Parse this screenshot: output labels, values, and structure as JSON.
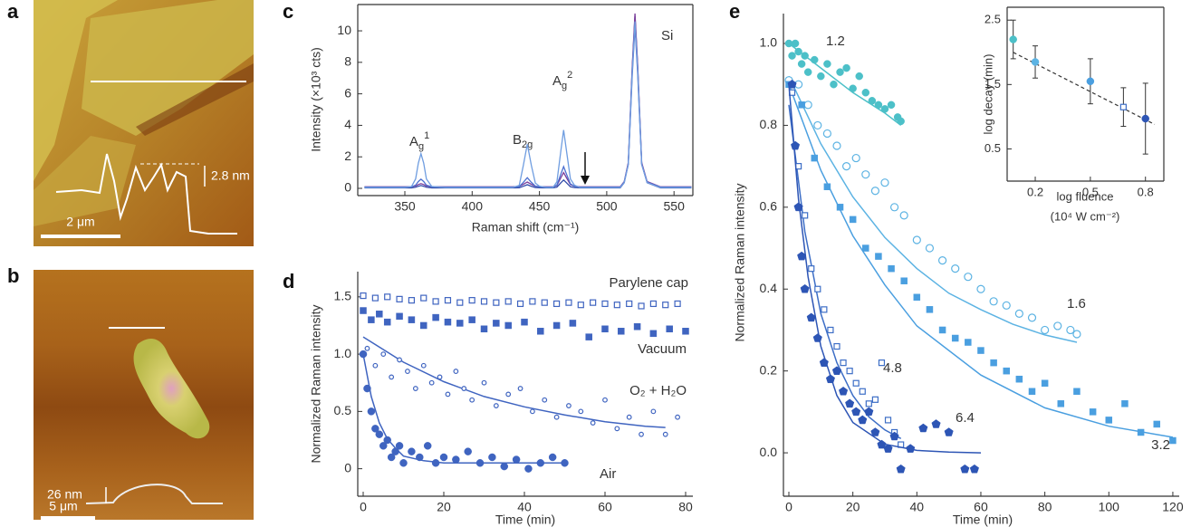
{
  "panels": {
    "a": {
      "label": "a",
      "height": "2.8 nm",
      "scale_bar": "2 μm"
    },
    "b": {
      "label": "b",
      "height": "26 nm",
      "scale_bar": "5 μm"
    }
  },
  "chart_data": [
    {
      "type": "line",
      "panel": "c",
      "xlabel": "Raman shift (cm⁻¹)",
      "ylabel": "Intensity (×10³ cts)",
      "frame": true,
      "xlim": [
        315,
        564
      ],
      "ylim": [
        -0.46,
        11.67
      ],
      "xticks": [
        350,
        400,
        450,
        500,
        550
      ],
      "yticks": [
        0,
        2,
        4,
        6,
        8,
        10
      ],
      "peak_labels": [
        {
          "base": "A",
          "sub": "g",
          "sup": "1"
        },
        {
          "base": "B",
          "sub": "2g"
        },
        {
          "base": "A",
          "sub": "g",
          "sup": "2"
        },
        {
          "base": "Si"
        }
      ],
      "x": [
        320,
        330,
        340,
        350,
        355,
        358,
        360,
        362,
        364,
        366,
        370,
        380,
        400,
        420,
        430,
        435,
        438,
        441,
        444,
        447,
        450,
        455,
        460,
        463,
        466,
        468,
        470,
        473,
        476,
        480,
        490,
        500,
        510,
        513,
        516,
        519,
        521,
        523,
        526,
        530,
        540,
        550,
        563
      ],
      "series": [
        {
          "color": "#2f4aa8",
          "values": [
            0.03,
            0.03,
            0.03,
            0.03,
            0.03,
            0.07,
            0.13,
            0.18,
            0.13,
            0.07,
            0.03,
            0.03,
            0.03,
            0.03,
            0.03,
            0.04,
            0.13,
            0.23,
            0.13,
            0.05,
            0.04,
            0.03,
            0.03,
            0.08,
            0.36,
            0.53,
            0.36,
            0.1,
            0.05,
            0.03,
            0.03,
            0.03,
            0.03,
            0.36,
            1.56,
            7.66,
            10.93,
            7.66,
            1.56,
            0.36,
            0.03,
            0.03,
            0.03
          ]
        },
        {
          "color": "#7a3d9a",
          "values": [
            0.1,
            0.1,
            0.1,
            0.1,
            0.11,
            0.15,
            0.24,
            0.3,
            0.24,
            0.15,
            0.11,
            0.1,
            0.1,
            0.1,
            0.1,
            0.12,
            0.25,
            0.4,
            0.25,
            0.13,
            0.1,
            0.1,
            0.1,
            0.19,
            0.69,
            1.0,
            0.69,
            0.24,
            0.14,
            0.1,
            0.1,
            0.1,
            0.1,
            0.43,
            1.64,
            7.8,
            11.1,
            7.8,
            1.64,
            0.43,
            0.1,
            0.1,
            0.1
          ]
        },
        {
          "color": "#4b6fcf",
          "values": [
            0.08,
            0.08,
            0.08,
            0.08,
            0.1,
            0.2,
            0.43,
            0.58,
            0.43,
            0.2,
            0.1,
            0.08,
            0.08,
            0.08,
            0.08,
            0.11,
            0.38,
            0.68,
            0.38,
            0.14,
            0.1,
            0.08,
            0.08,
            0.21,
            0.93,
            1.38,
            0.93,
            0.28,
            0.13,
            0.08,
            0.08,
            0.08,
            0.08,
            0.39,
            1.51,
            7.22,
            10.28,
            7.22,
            1.51,
            0.39,
            0.08,
            0.08,
            0.08
          ]
        },
        {
          "color": "#6f9de0",
          "values": [
            0.05,
            0.05,
            0.05,
            0.05,
            0.12,
            0.6,
            1.6,
            2.2,
            1.6,
            0.6,
            0.12,
            0.05,
            0.05,
            0.05,
            0.05,
            0.19,
            1.45,
            2.8,
            1.45,
            0.33,
            0.13,
            0.05,
            0.05,
            0.42,
            2.45,
            3.7,
            2.45,
            0.6,
            0.2,
            0.05,
            0.05,
            0.05,
            0.05,
            0.37,
            1.53,
            7.45,
            10.6,
            7.45,
            1.53,
            0.37,
            0.05,
            0.05,
            0.05
          ]
        }
      ]
    },
    {
      "type": "scatter",
      "panel": "d",
      "xlabel": "Time (min)",
      "ylabel": "Normalized Raman intensity",
      "frame": false,
      "xlim": [
        -1.35,
        81.8
      ],
      "ylim": [
        -0.24,
        1.72
      ],
      "xticks": [
        0,
        20,
        40,
        60,
        80
      ],
      "yticks": [
        0,
        0.5,
        {
          "value": 1,
          "label": "1.0"
        },
        1.5
      ],
      "series": [
        {
          "name": "Parylene cap",
          "color": "#3f64c0",
          "marker": "open-square",
          "x": [
            0,
            3,
            6,
            9,
            12,
            15,
            18,
            21,
            24,
            27,
            30,
            33,
            36,
            39,
            42,
            45,
            48,
            51,
            54,
            57,
            60,
            63,
            66,
            69,
            72,
            75,
            78
          ],
          "values": [
            1.51,
            1.49,
            1.5,
            1.48,
            1.47,
            1.49,
            1.46,
            1.47,
            1.45,
            1.47,
            1.46,
            1.45,
            1.46,
            1.44,
            1.46,
            1.45,
            1.44,
            1.45,
            1.43,
            1.45,
            1.44,
            1.43,
            1.44,
            1.42,
            1.44,
            1.43,
            1.44
          ]
        },
        {
          "name": "Vacuum",
          "color": "#3f64c0",
          "marker": "square",
          "x": [
            0,
            2,
            4,
            6,
            9,
            12,
            15,
            18,
            21,
            24,
            27,
            30,
            33,
            36,
            40,
            44,
            48,
            52,
            56,
            60,
            64,
            68,
            72,
            76,
            80
          ],
          "values": [
            1.38,
            1.3,
            1.35,
            1.28,
            1.33,
            1.3,
            1.25,
            1.32,
            1.28,
            1.27,
            1.3,
            1.22,
            1.27,
            1.25,
            1.28,
            1.2,
            1.25,
            1.27,
            1.15,
            1.22,
            1.2,
            1.24,
            1.18,
            1.22,
            1.2
          ]
        },
        {
          "name": "O₂ + H₂O",
          "color": "#3f64c0",
          "marker": "small-open-circle",
          "x": [
            1,
            3,
            5,
            7,
            9,
            11,
            13,
            15,
            17,
            19,
            21,
            23,
            25,
            27,
            30,
            33,
            36,
            39,
            42,
            45,
            48,
            51,
            54,
            57,
            60,
            63,
            66,
            69,
            72,
            75,
            78
          ],
          "values": [
            1.05,
            0.9,
            1.0,
            0.8,
            0.95,
            0.85,
            0.7,
            0.9,
            0.75,
            0.8,
            0.65,
            0.85,
            0.7,
            0.6,
            0.75,
            0.55,
            0.65,
            0.7,
            0.5,
            0.6,
            0.45,
            0.55,
            0.5,
            0.4,
            0.6,
            0.35,
            0.45,
            0.3,
            0.5,
            0.3,
            0.45
          ],
          "fit": {
            "x": [
              0,
              10,
              20,
              30,
              40,
              50,
              60,
              70,
              75
            ],
            "values": [
              1.15,
              0.93,
              0.76,
              0.63,
              0.54,
              0.47,
              0.41,
              0.37,
              0.36
            ]
          }
        },
        {
          "name": "Air",
          "color": "#3f64c0",
          "marker": "circle",
          "x": [
            0,
            1,
            2,
            3,
            4,
            5,
            6,
            7,
            8,
            9,
            10,
            12,
            14,
            16,
            18,
            20,
            23,
            26,
            29,
            32,
            35,
            38,
            41,
            44,
            47,
            50
          ],
          "values": [
            1.0,
            0.7,
            0.5,
            0.35,
            0.3,
            0.2,
            0.25,
            0.1,
            0.15,
            0.2,
            0.05,
            0.15,
            0.1,
            0.2,
            0.05,
            0.1,
            0.08,
            0.15,
            0.05,
            0.1,
            0.02,
            0.08,
            0.0,
            0.05,
            0.1,
            0.05
          ],
          "fit": {
            "x": [
              0,
              2,
              4,
              6,
              8,
              10,
              15,
              20,
              30,
              40,
              50
            ],
            "values": [
              1.0,
              0.63,
              0.4,
              0.26,
              0.18,
              0.11,
              0.07,
              0.05,
              0.05,
              0.05,
              0.05
            ]
          }
        }
      ]
    },
    {
      "type": "scatter",
      "panel": "e",
      "xlabel": "Time (min)",
      "ylabel": "Normalized Raman intensity",
      "frame": false,
      "xlim": [
        -1.7,
        122
      ],
      "ylim": [
        -0.106,
        1.073
      ],
      "xticks": [
        0,
        20,
        40,
        60,
        80,
        100,
        120
      ],
      "yticks": [
        {
          "value": 0,
          "label": "0.0"
        },
        0.2,
        0.4,
        0.6,
        0.8,
        {
          "value": 1,
          "label": "1.0"
        }
      ],
      "series": [
        {
          "name": "1.2",
          "color": "#4cc0c8",
          "marker": "circle",
          "x": [
            0,
            1,
            2,
            3,
            4,
            5,
            6,
            8,
            10,
            12,
            14,
            16,
            18,
            20,
            22,
            24,
            26,
            28,
            30,
            32,
            34,
            35
          ],
          "values": [
            1.0,
            0.97,
            1.0,
            0.98,
            0.95,
            0.97,
            0.93,
            0.96,
            0.92,
            0.95,
            0.9,
            0.93,
            0.94,
            0.89,
            0.92,
            0.88,
            0.86,
            0.85,
            0.84,
            0.85,
            0.82,
            0.81
          ],
          "fit": {
            "x": [
              0,
              10,
              20,
              30,
              35
            ],
            "values": [
              1.0,
              0.94,
              0.88,
              0.83,
              0.8
            ]
          }
        },
        {
          "name": "1.6",
          "color": "#5cb3e3",
          "marker": "open-circle",
          "x": [
            0,
            3,
            6,
            9,
            12,
            15,
            18,
            21,
            24,
            27,
            30,
            33,
            36,
            40,
            44,
            48,
            52,
            56,
            60,
            64,
            68,
            72,
            76,
            80,
            84,
            88,
            90
          ],
          "values": [
            0.91,
            0.9,
            0.85,
            0.8,
            0.78,
            0.75,
            0.7,
            0.72,
            0.68,
            0.64,
            0.66,
            0.6,
            0.58,
            0.52,
            0.5,
            0.47,
            0.45,
            0.43,
            0.4,
            0.37,
            0.36,
            0.34,
            0.33,
            0.3,
            0.31,
            0.3,
            0.29
          ],
          "fit": {
            "x": [
              0,
              10,
              20,
              30,
              40,
              50,
              60,
              70,
              80,
              90
            ],
            "values": [
              0.92,
              0.755,
              0.625,
              0.526,
              0.45,
              0.39,
              0.35,
              0.314,
              0.288,
              0.27
            ]
          }
        },
        {
          "name": "3.2",
          "color": "#4a9fe0",
          "marker": "square",
          "x": [
            0,
            4,
            8,
            12,
            16,
            20,
            24,
            28,
            32,
            36,
            40,
            44,
            48,
            52,
            56,
            60,
            64,
            68,
            72,
            76,
            80,
            85,
            90,
            95,
            100,
            105,
            110,
            115,
            120
          ],
          "values": [
            0.9,
            0.85,
            0.72,
            0.65,
            0.6,
            0.57,
            0.5,
            0.48,
            0.45,
            0.42,
            0.38,
            0.35,
            0.3,
            0.28,
            0.27,
            0.25,
            0.22,
            0.2,
            0.18,
            0.15,
            0.17,
            0.12,
            0.15,
            0.1,
            0.08,
            0.12,
            0.05,
            0.07,
            0.03
          ],
          "fit": {
            "x": [
              0,
              10,
              20,
              30,
              40,
              60,
              80,
              100,
              120
            ],
            "values": [
              0.9,
              0.69,
              0.53,
              0.41,
              0.31,
              0.19,
              0.11,
              0.065,
              0.038
            ]
          }
        },
        {
          "name": "4.8",
          "color": "#3d6ec6",
          "marker": "open-square",
          "x": [
            1,
            3,
            5,
            7,
            9,
            11,
            13,
            15,
            17,
            19,
            21,
            23,
            25,
            27,
            29,
            31,
            33,
            35
          ],
          "values": [
            0.88,
            0.7,
            0.58,
            0.45,
            0.4,
            0.35,
            0.3,
            0.26,
            0.22,
            0.2,
            0.17,
            0.15,
            0.12,
            0.13,
            0.22,
            0.08,
            0.05,
            0.02
          ],
          "fit": {
            "x": [
              0,
              5,
              10,
              15,
              20,
              25,
              30,
              35
            ],
            "values": [
              0.85,
              0.54,
              0.34,
              0.22,
              0.14,
              0.088,
              0.056,
              0.035
            ]
          }
        },
        {
          "name": "6.4",
          "color": "#2d55b5",
          "marker": "pentagon",
          "x": [
            1,
            2,
            3,
            4,
            5,
            7,
            9,
            11,
            13,
            15,
            17,
            19,
            21,
            23,
            25,
            27,
            29,
            31,
            33,
            35,
            38,
            42,
            46,
            50,
            55,
            58
          ],
          "values": [
            0.9,
            0.75,
            0.6,
            0.48,
            0.4,
            0.33,
            0.28,
            0.22,
            0.18,
            0.2,
            0.15,
            0.12,
            0.1,
            0.08,
            0.1,
            0.05,
            0.02,
            0.01,
            0.04,
            -0.04,
            0.01,
            0.06,
            0.07,
            0.05,
            -0.04,
            -0.04
          ],
          "fit": {
            "x": [
              0,
              3,
              6,
              10,
              15,
              20,
              30,
              40,
              50,
              60
            ],
            "values": [
              0.9,
              0.62,
              0.43,
              0.26,
              0.14,
              0.074,
              0.021,
              0.006,
              0.002,
              0.0
            ]
          }
        }
      ]
    },
    {
      "type": "scatter",
      "xlabel": "log fluence",
      "xlabel_unit": "(10⁴ W cm⁻²)",
      "ylabel": "log decay (min)",
      "frame": true,
      "xlim": [
        0.047,
        0.9
      ],
      "ylim": [
        0,
        2.7
      ],
      "xticks": [
        0.2,
        0.5,
        0.8
      ],
      "yticks": [
        0.5,
        1.5,
        2.5
      ],
      "x": [
        0.08,
        0.2,
        0.5,
        0.68,
        0.8
      ],
      "values": [
        2.2,
        1.85,
        1.55,
        1.15,
        0.97
      ],
      "errors": [
        0.3,
        0.25,
        0.35,
        0.3,
        0.55
      ],
      "colors": [
        "#4cc0c8",
        "#5cb3e3",
        "#4a9fe0",
        "#3d6ec6",
        "#2d55b5"
      ],
      "markers": [
        "circle",
        "circle",
        "circle",
        "open-square",
        "circle"
      ],
      "fit": {
        "x": [
          0.08,
          0.85
        ],
        "values": [
          2.0,
          0.88
        ],
        "dashed": true
      }
    }
  ]
}
